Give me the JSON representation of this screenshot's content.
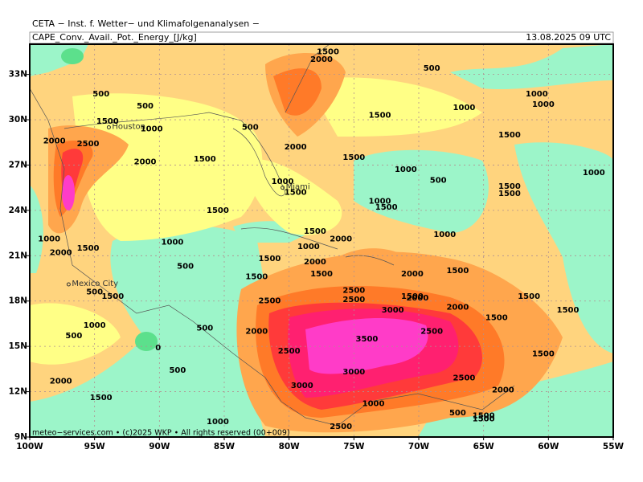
{
  "header": {
    "title": "CETA − Inst. f. Wetter− und Klimafolgenanalysen −",
    "field": "CAPE_Conv._Avail._Pot._Energy_[J/kg]",
    "valid": "13.08.2025 09 UTC"
  },
  "map": {
    "xlim": [
      -100,
      -55
    ],
    "ylim": [
      9,
      35
    ],
    "xticks": [
      {
        "value": -100,
        "label": "100W"
      },
      {
        "value": -95,
        "label": "95W"
      },
      {
        "value": -90,
        "label": "90W"
      },
      {
        "value": -85,
        "label": "85W"
      },
      {
        "value": -80,
        "label": "80W"
      },
      {
        "value": -75,
        "label": "75W"
      },
      {
        "value": -70,
        "label": "70W"
      },
      {
        "value": -65,
        "label": "65W"
      },
      {
        "value": -60,
        "label": "60W"
      },
      {
        "value": -55,
        "label": "55W"
      }
    ],
    "yticks": [
      {
        "value": 9,
        "label": "9N"
      },
      {
        "value": 12,
        "label": "12N"
      },
      {
        "value": 15,
        "label": "15N"
      },
      {
        "value": 18,
        "label": "18N"
      },
      {
        "value": 21,
        "label": "21N"
      },
      {
        "value": 24,
        "label": "24N"
      },
      {
        "value": 27,
        "label": "27N"
      },
      {
        "value": 30,
        "label": "30N"
      },
      {
        "value": 33,
        "label": "33N"
      }
    ],
    "places": [
      {
        "name": "Houston",
        "lon": -93.9,
        "lat": 29.5
      },
      {
        "name": "Miami",
        "lon": -80.5,
        "lat": 25.5
      },
      {
        "name": "Mexico City",
        "lon": -97.0,
        "lat": 19.1
      }
    ],
    "contour_labels": [
      {
        "value": 1500,
        "lon": -77.0,
        "lat": 34.5
      },
      {
        "value": 2000,
        "lon": -77.5,
        "lat": 34.0
      },
      {
        "value": 500,
        "lon": -69.0,
        "lat": 33.4
      },
      {
        "value": 500,
        "lon": -94.5,
        "lat": 31.7
      },
      {
        "value": 500,
        "lon": -91.1,
        "lat": 30.9
      },
      {
        "value": 1000,
        "lon": -66.5,
        "lat": 30.8
      },
      {
        "value": 1000,
        "lon": -60.9,
        "lat": 31.7
      },
      {
        "value": 1000,
        "lon": -60.4,
        "lat": 31.0
      },
      {
        "value": 1500,
        "lon": -94.0,
        "lat": 29.9
      },
      {
        "value": 1500,
        "lon": -73.0,
        "lat": 30.3
      },
      {
        "value": 500,
        "lon": -83.0,
        "lat": 29.5
      },
      {
        "value": 1000,
        "lon": -90.6,
        "lat": 29.4
      },
      {
        "value": 1500,
        "lon": -63.0,
        "lat": 29.0
      },
      {
        "value": 2000,
        "lon": -98.1,
        "lat": 28.6
      },
      {
        "value": 2500,
        "lon": -95.5,
        "lat": 28.4
      },
      {
        "value": 2000,
        "lon": -79.5,
        "lat": 28.2
      },
      {
        "value": 1500,
        "lon": -75.0,
        "lat": 27.5
      },
      {
        "value": 1500,
        "lon": -86.5,
        "lat": 27.4
      },
      {
        "value": 2000,
        "lon": -91.1,
        "lat": 27.2
      },
      {
        "value": 1000,
        "lon": -71.0,
        "lat": 26.7
      },
      {
        "value": 500,
        "lon": -68.5,
        "lat": 26.0
      },
      {
        "value": 1000,
        "lon": -56.5,
        "lat": 26.5
      },
      {
        "value": 1000,
        "lon": -80.5,
        "lat": 25.9
      },
      {
        "value": 1500,
        "lon": -79.5,
        "lat": 25.2
      },
      {
        "value": 1500,
        "lon": -63.0,
        "lat": 25.6
      },
      {
        "value": 1500,
        "lon": -63.0,
        "lat": 25.1
      },
      {
        "value": 1000,
        "lon": -73.0,
        "lat": 24.6
      },
      {
        "value": 1500,
        "lon": -72.5,
        "lat": 24.2
      },
      {
        "value": 1500,
        "lon": -85.5,
        "lat": 24.0
      },
      {
        "value": 1000,
        "lon": -68.0,
        "lat": 22.4
      },
      {
        "value": 1500,
        "lon": -78.0,
        "lat": 22.6
      },
      {
        "value": 2000,
        "lon": -76.0,
        "lat": 22.1
      },
      {
        "value": 1000,
        "lon": -98.5,
        "lat": 22.1
      },
      {
        "value": 1500,
        "lon": -95.5,
        "lat": 21.5
      },
      {
        "value": 1000,
        "lon": -89.0,
        "lat": 21.9
      },
      {
        "value": 1000,
        "lon": -78.5,
        "lat": 21.6
      },
      {
        "value": 2000,
        "lon": -97.6,
        "lat": 21.2
      },
      {
        "value": 1500,
        "lon": -81.5,
        "lat": 20.8
      },
      {
        "value": 2000,
        "lon": -78.0,
        "lat": 20.6
      },
      {
        "value": 500,
        "lon": -88.0,
        "lat": 20.3
      },
      {
        "value": 1500,
        "lon": -67.0,
        "lat": 20.0
      },
      {
        "value": 1500,
        "lon": -77.5,
        "lat": 19.8
      },
      {
        "value": 1500,
        "lon": -82.5,
        "lat": 19.6
      },
      {
        "value": 2000,
        "lon": -70.5,
        "lat": 19.8
      },
      {
        "value": 500,
        "lon": -95.0,
        "lat": 18.6
      },
      {
        "value": 1500,
        "lon": -93.6,
        "lat": 18.3
      },
      {
        "value": 2500,
        "lon": -75.0,
        "lat": 18.7
      },
      {
        "value": 2500,
        "lon": -75.0,
        "lat": 18.1
      },
      {
        "value": 1500,
        "lon": -70.5,
        "lat": 18.3
      },
      {
        "value": 2000,
        "lon": -70.1,
        "lat": 18.2
      },
      {
        "value": 2500,
        "lon": -81.5,
        "lat": 18.0
      },
      {
        "value": 3000,
        "lon": -72.0,
        "lat": 17.4
      },
      {
        "value": 2000,
        "lon": -67.0,
        "lat": 17.6
      },
      {
        "value": 1500,
        "lon": -61.5,
        "lat": 18.3
      },
      {
        "value": 1500,
        "lon": -58.5,
        "lat": 17.4
      },
      {
        "value": 1500,
        "lon": -64.0,
        "lat": 16.9
      },
      {
        "value": 1000,
        "lon": -95.0,
        "lat": 16.4
      },
      {
        "value": 500,
        "lon": -86.5,
        "lat": 16.2
      },
      {
        "value": 500,
        "lon": -96.6,
        "lat": 15.7
      },
      {
        "value": 2000,
        "lon": -82.5,
        "lat": 16.0
      },
      {
        "value": 2500,
        "lon": -69.0,
        "lat": 16.0
      },
      {
        "value": 3500,
        "lon": -74.0,
        "lat": 15.5
      },
      {
        "value": 2500,
        "lon": -80.0,
        "lat": 14.7
      },
      {
        "value": 1500,
        "lon": -60.4,
        "lat": 14.5
      },
      {
        "value": 0,
        "lon": -90.1,
        "lat": 14.9
      },
      {
        "value": 500,
        "lon": -88.6,
        "lat": 13.4
      },
      {
        "value": 3000,
        "lon": -75.0,
        "lat": 13.3
      },
      {
        "value": 2500,
        "lon": -66.5,
        "lat": 12.9
      },
      {
        "value": 2000,
        "lon": -97.6,
        "lat": 12.7
      },
      {
        "value": 3000,
        "lon": -79.0,
        "lat": 12.4
      },
      {
        "value": 2000,
        "lon": -63.5,
        "lat": 12.1
      },
      {
        "value": 1500,
        "lon": -94.5,
        "lat": 11.6
      },
      {
        "value": 1000,
        "lon": -73.5,
        "lat": 11.2
      },
      {
        "value": 500,
        "lon": -67.0,
        "lat": 10.6
      },
      {
        "value": 1500,
        "lon": -65.0,
        "lat": 10.4
      },
      {
        "value": 1500,
        "lon": -65.0,
        "lat": 10.2
      },
      {
        "value": 1000,
        "lon": -85.5,
        "lat": 10.0
      },
      {
        "value": 2500,
        "lon": -76.0,
        "lat": 9.7
      }
    ]
  },
  "footer": "meteo−services.com • (c)2025 WKP • All rights reserved (00+009)"
}
